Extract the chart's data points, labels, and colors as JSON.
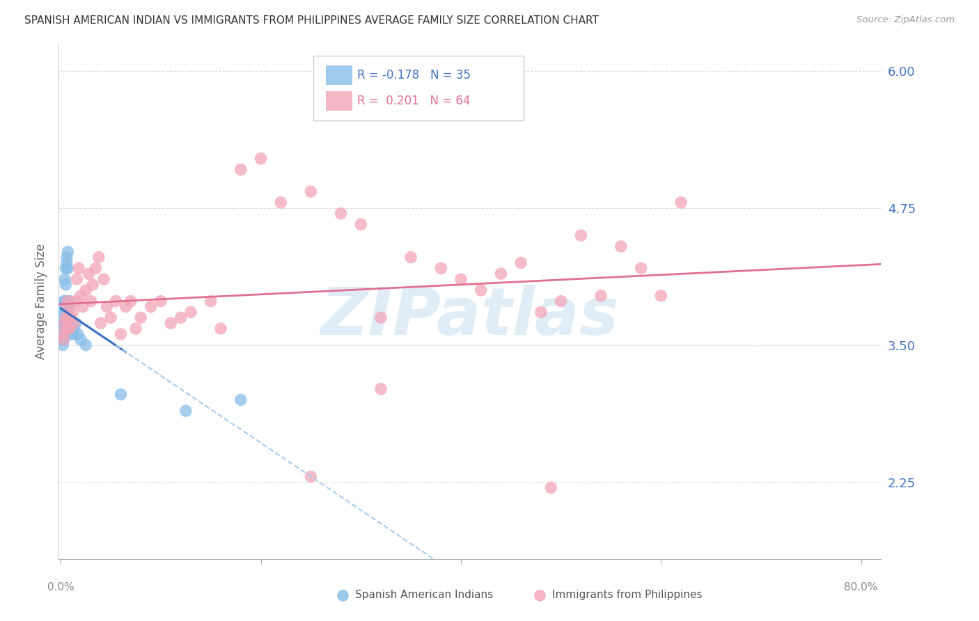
{
  "title": "SPANISH AMERICAN INDIAN VS IMMIGRANTS FROM PHILIPPINES AVERAGE FAMILY SIZE CORRELATION CHART",
  "source": "Source: ZipAtlas.com",
  "ylabel": "Average Family Size",
  "yticks": [
    2.25,
    3.5,
    4.75,
    6.0
  ],
  "ymin": 1.55,
  "ymax": 6.25,
  "xmin": -0.002,
  "xmax": 0.82,
  "legend_blue_r": "-0.178",
  "legend_blue_n": "35",
  "legend_pink_r": "0.201",
  "legend_pink_n": "64",
  "blue_color": "#88bde8",
  "pink_color": "#f4a5b8",
  "trendline_blue_solid": "#3a6dbf",
  "trendline_blue_dash": "#aaccee",
  "trendline_pink": "#e07090",
  "blue_x": [
    0.001,
    0.001,
    0.001,
    0.002,
    0.002,
    0.002,
    0.003,
    0.003,
    0.003,
    0.003,
    0.004,
    0.004,
    0.004,
    0.005,
    0.005,
    0.005,
    0.006,
    0.006,
    0.007,
    0.007,
    0.008,
    0.008,
    0.009,
    0.01,
    0.01,
    0.011,
    0.012,
    0.013,
    0.015,
    0.017,
    0.02,
    0.025,
    0.06,
    0.125,
    0.18
  ],
  "blue_y": [
    3.65,
    3.75,
    3.55,
    3.85,
    3.6,
    3.5,
    3.9,
    3.7,
    3.65,
    3.55,
    4.1,
    3.8,
    3.7,
    4.2,
    4.05,
    3.9,
    4.3,
    4.25,
    4.35,
    4.2,
    3.85,
    3.75,
    3.9,
    3.7,
    3.6,
    3.65,
    3.6,
    3.65,
    3.7,
    3.6,
    3.55,
    3.5,
    3.05,
    2.9,
    3.0
  ],
  "pink_x": [
    0.002,
    0.003,
    0.004,
    0.005,
    0.006,
    0.006,
    0.007,
    0.008,
    0.009,
    0.01,
    0.012,
    0.013,
    0.015,
    0.016,
    0.018,
    0.02,
    0.022,
    0.025,
    0.028,
    0.03,
    0.032,
    0.035,
    0.038,
    0.04,
    0.043,
    0.046,
    0.05,
    0.055,
    0.06,
    0.065,
    0.07,
    0.075,
    0.08,
    0.09,
    0.1,
    0.11,
    0.12,
    0.13,
    0.15,
    0.16,
    0.18,
    0.2,
    0.22,
    0.25,
    0.28,
    0.3,
    0.32,
    0.35,
    0.38,
    0.4,
    0.42,
    0.44,
    0.46,
    0.48,
    0.5,
    0.52,
    0.54,
    0.56,
    0.58,
    0.6,
    0.25,
    0.32,
    0.49,
    0.62
  ],
  "pink_y": [
    3.6,
    3.55,
    3.7,
    3.75,
    3.65,
    3.85,
    3.9,
    3.75,
    3.65,
    3.75,
    3.8,
    3.7,
    3.9,
    4.1,
    4.2,
    3.95,
    3.85,
    4.0,
    4.15,
    3.9,
    4.05,
    4.2,
    4.3,
    3.7,
    4.1,
    3.85,
    3.75,
    3.9,
    3.6,
    3.85,
    3.9,
    3.65,
    3.75,
    3.85,
    3.9,
    3.7,
    3.75,
    3.8,
    3.9,
    3.65,
    5.1,
    5.2,
    4.8,
    4.9,
    4.7,
    4.6,
    3.75,
    4.3,
    4.2,
    4.1,
    4.0,
    4.15,
    4.25,
    3.8,
    3.9,
    4.5,
    3.95,
    4.4,
    4.2,
    3.95,
    2.3,
    3.1,
    2.2,
    4.8
  ]
}
